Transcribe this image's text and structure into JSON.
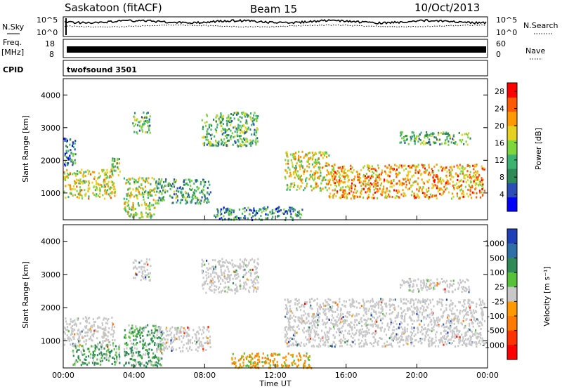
{
  "header": {
    "station": "Saskatoon (fitACF)",
    "beam": "Beam 15",
    "date": "10/Oct/2013"
  },
  "strips": {
    "nsky_label": "N.Sky",
    "nsearch_label": "N.Search",
    "freq_label_1": "Freq.",
    "freq_label_2": "[MHz]",
    "nave_label": "Nave",
    "cpid_label": "CPID",
    "cpid_value": "twofsound 3501",
    "noise_left_ticks": [
      "10^5",
      "10^0"
    ],
    "noise_right_ticks": [
      "10^5",
      "10^0"
    ],
    "freq_ticks": [
      "18",
      "8"
    ],
    "nave_ticks": [
      "60",
      "0"
    ]
  },
  "colors": {
    "power": [
      "#0000ff",
      "#2a4db8",
      "#2e8b57",
      "#3cb371",
      "#7dd63b",
      "#e6d21e",
      "#ff9900",
      "#ff5a00",
      "#ff0000"
    ],
    "velocity": [
      "#1f3fb8",
      "#2e6fa8",
      "#2e8b57",
      "#55c23a",
      "#c8c8c8",
      "#ff9900",
      "#ff7a00",
      "#ff3300",
      "#ff0000"
    ],
    "scatter_gray": "#c8c8c8"
  },
  "chart_data": [
    {
      "type": "heatmap",
      "name": "power-panel",
      "xlabel": "",
      "ylabel": "Slant Range [km]",
      "xlim": [
        0,
        24
      ],
      "ylim": [
        180,
        4500
      ],
      "ytick_labels": [
        "1000",
        "2000",
        "3000",
        "4000"
      ],
      "ytick_values": [
        1000,
        2000,
        3000,
        4000
      ],
      "colorbar": {
        "label": "Power [dB]",
        "range": [
          0,
          30
        ],
        "tick_labels": [
          "4",
          "8",
          "12",
          "16",
          "20",
          "24",
          "28"
        ],
        "tick_values": [
          4,
          8,
          12,
          16,
          20,
          24,
          28
        ]
      },
      "echo_regions": [
        {
          "t0": 0.0,
          "t1": 2.9,
          "r0": 850,
          "r1": 1750,
          "level": 18
        },
        {
          "t0": 0.0,
          "t1": 0.7,
          "r0": 1800,
          "r1": 2700,
          "level": 8
        },
        {
          "t0": 2.7,
          "t1": 3.2,
          "r0": 1550,
          "r1": 2200,
          "level": 14
        },
        {
          "t0": 3.9,
          "t1": 4.9,
          "r0": 2850,
          "r1": 3500,
          "level": 12
        },
        {
          "t0": 3.4,
          "t1": 5.2,
          "r0": 250,
          "r1": 1500,
          "level": 16
        },
        {
          "t0": 5.2,
          "t1": 8.3,
          "r0": 700,
          "r1": 1450,
          "level": 10
        },
        {
          "t0": 7.8,
          "t1": 11.0,
          "r0": 2450,
          "r1": 3500,
          "level": 12
        },
        {
          "t0": 8.5,
          "t1": 13.5,
          "r0": 200,
          "r1": 600,
          "level": 8
        },
        {
          "t0": 12.5,
          "t1": 15.0,
          "r0": 1100,
          "r1": 2300,
          "level": 18
        },
        {
          "t0": 15.0,
          "t1": 23.8,
          "r0": 850,
          "r1": 1900,
          "level": 22
        },
        {
          "t0": 19.0,
          "t1": 23.0,
          "r0": 2500,
          "r1": 2900,
          "level": 12
        }
      ]
    },
    {
      "type": "heatmap",
      "name": "velocity-panel",
      "xlabel": "Time UT",
      "ylabel": "Slant Range [km]",
      "xlim": [
        0,
        24
      ],
      "ylim": [
        180,
        4500
      ],
      "xtick_labels": [
        "00:00",
        "04:00",
        "08:00",
        "12:00",
        "16:00",
        "20:00",
        "00:00"
      ],
      "xtick_values": [
        0,
        4,
        8,
        12,
        16,
        20,
        24
      ],
      "ytick_labels": [
        "1000",
        "2000",
        "3000",
        "4000"
      ],
      "ytick_values": [
        1000,
        2000,
        3000,
        4000
      ],
      "colorbar": {
        "label": "Velocity [m s⁻¹]",
        "tick_labels": [
          "1000",
          "500",
          "100",
          "25",
          "-25",
          "-100",
          "-500",
          "-1000"
        ],
        "tick_values": [
          1000,
          500,
          100,
          25,
          -25,
          -100,
          -500,
          -1000
        ]
      },
      "echo_regions": [
        {
          "t0": 0.0,
          "t1": 2.9,
          "r0": 850,
          "r1": 1750,
          "kind": "gray"
        },
        {
          "t0": 0.5,
          "t1": 3.2,
          "r0": 300,
          "r1": 900,
          "kind": "green"
        },
        {
          "t0": 3.9,
          "t1": 4.9,
          "r0": 2850,
          "r1": 3500,
          "kind": "gray"
        },
        {
          "t0": 3.4,
          "t1": 5.6,
          "r0": 250,
          "r1": 1500,
          "kind": "green"
        },
        {
          "t0": 5.2,
          "t1": 8.3,
          "r0": 700,
          "r1": 1450,
          "kind": "gray"
        },
        {
          "t0": 7.8,
          "t1": 11.0,
          "r0": 2450,
          "r1": 3500,
          "kind": "gray"
        },
        {
          "t0": 9.5,
          "t1": 14.0,
          "r0": 200,
          "r1": 650,
          "kind": "orange"
        },
        {
          "t0": 12.5,
          "t1": 23.8,
          "r0": 850,
          "r1": 2300,
          "kind": "gray"
        },
        {
          "t0": 19.0,
          "t1": 23.0,
          "r0": 2500,
          "r1": 2900,
          "kind": "gray"
        }
      ]
    }
  ]
}
